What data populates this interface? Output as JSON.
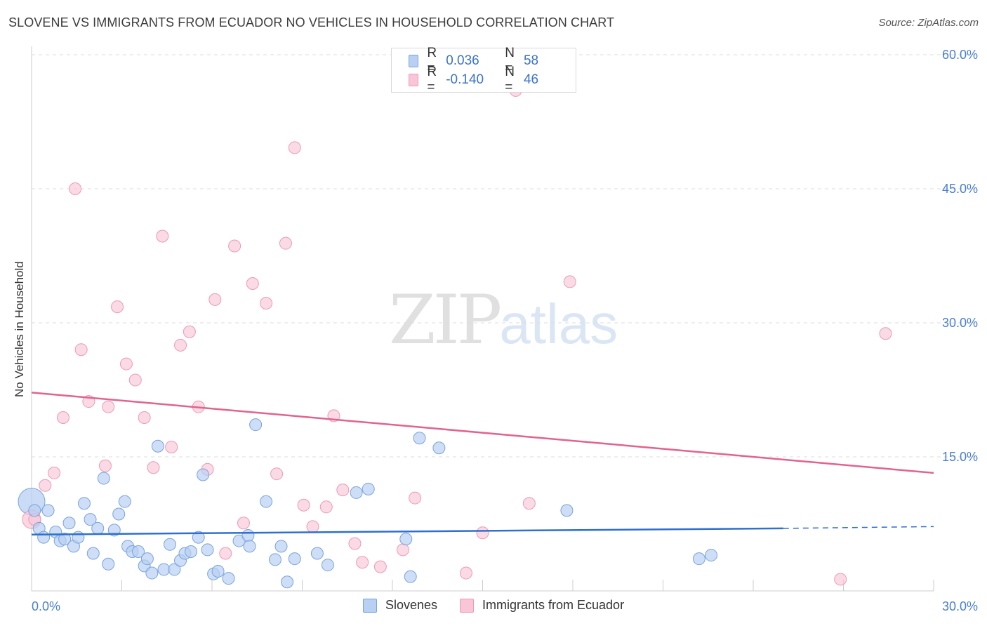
{
  "title": "SLOVENE VS IMMIGRANTS FROM ECUADOR NO VEHICLES IN HOUSEHOLD CORRELATION CHART",
  "source": "Source: ZipAtlas.com",
  "watermark": {
    "zip": "ZIP",
    "atlas": "atlas"
  },
  "legend": {
    "rows": [
      {
        "r_label": "R =",
        "r_value": "0.036",
        "n_label": "N =",
        "n_value": "58"
      },
      {
        "r_label": "R =",
        "r_value": "-0.140",
        "n_label": "N =",
        "n_value": "46"
      }
    ]
  },
  "bottom_legend": {
    "series1": "Slovenes",
    "series2": "Immigrants from Ecuador"
  },
  "colors": {
    "blue_fill": "#b8d0f2",
    "blue_stroke": "#7aa3de",
    "blue_line": "#2e6fcf",
    "pink_fill": "#f8c6d6",
    "pink_stroke": "#ee9ab5",
    "pink_line": "#e0648e",
    "tick_text": "#4a7fd0",
    "grid": "#dddddd"
  },
  "chart_data": {
    "type": "scatter",
    "title": "SLOVENE VS IMMIGRANTS FROM ECUADOR NO VEHICLES IN HOUSEHOLD CORRELATION CHART",
    "xlabel": "",
    "ylabel": "No Vehicles in Household",
    "xlim": [
      0,
      30
    ],
    "ylim": [
      0,
      60
    ],
    "x_tick_labels": [
      "0.0%",
      "30.0%"
    ],
    "y_ticks": [
      15,
      30,
      45,
      60
    ],
    "y_tick_labels": [
      "15.0%",
      "30.0%",
      "45.0%",
      "60.0%"
    ],
    "grid": true,
    "legend_position": "top-center",
    "series": [
      {
        "name": "Slovenes",
        "color": "#b8d0f2",
        "trend": {
          "x": [
            0,
            25
          ],
          "y": [
            6.3,
            7.0
          ],
          "dashed_to": [
            30,
            7.2
          ]
        },
        "points": [
          [
            0.1,
            9.0
          ],
          [
            0.25,
            7.0
          ],
          [
            0.4,
            6.0
          ],
          [
            0.55,
            9.0
          ],
          [
            0.8,
            6.6
          ],
          [
            0.95,
            5.6
          ],
          [
            1.1,
            5.8
          ],
          [
            1.25,
            7.6
          ],
          [
            1.4,
            5.0
          ],
          [
            1.55,
            6.0
          ],
          [
            1.75,
            9.8
          ],
          [
            1.95,
            8.0
          ],
          [
            2.05,
            4.2
          ],
          [
            2.2,
            7.0
          ],
          [
            2.4,
            12.6
          ],
          [
            2.55,
            3.0
          ],
          [
            2.75,
            6.8
          ],
          [
            2.9,
            8.6
          ],
          [
            3.1,
            10.0
          ],
          [
            3.2,
            5.0
          ],
          [
            3.35,
            4.4
          ],
          [
            3.55,
            4.4
          ],
          [
            3.75,
            2.8
          ],
          [
            3.85,
            3.6
          ],
          [
            4.0,
            2.0
          ],
          [
            4.2,
            16.2
          ],
          [
            4.4,
            2.4
          ],
          [
            4.6,
            5.2
          ],
          [
            4.75,
            2.4
          ],
          [
            4.95,
            3.4
          ],
          [
            5.1,
            4.2
          ],
          [
            5.3,
            4.4
          ],
          [
            5.55,
            6.0
          ],
          [
            5.7,
            13.0
          ],
          [
            5.85,
            4.6
          ],
          [
            6.05,
            1.9
          ],
          [
            6.2,
            2.2
          ],
          [
            6.55,
            1.4
          ],
          [
            6.9,
            5.6
          ],
          [
            7.2,
            6.2
          ],
          [
            7.25,
            5.0
          ],
          [
            7.45,
            18.6
          ],
          [
            7.8,
            10.0
          ],
          [
            8.1,
            3.5
          ],
          [
            8.3,
            5.0
          ],
          [
            8.5,
            1.0
          ],
          [
            8.75,
            3.6
          ],
          [
            9.5,
            4.2
          ],
          [
            9.85,
            2.9
          ],
          [
            10.8,
            11.0
          ],
          [
            11.2,
            11.4
          ],
          [
            12.45,
            5.8
          ],
          [
            12.6,
            1.6
          ],
          [
            12.9,
            17.1
          ],
          [
            13.55,
            16.0
          ],
          [
            17.8,
            9.0
          ],
          [
            22.2,
            3.6
          ],
          [
            22.6,
            4.0
          ]
        ]
      },
      {
        "name": "Immigrants from Ecuador",
        "color": "#f8c6d6",
        "trend": {
          "x": [
            0,
            30
          ],
          "y": [
            22.2,
            13.2
          ]
        },
        "points": [
          [
            0.1,
            8.0
          ],
          [
            0.45,
            11.8
          ],
          [
            0.75,
            13.2
          ],
          [
            1.05,
            19.4
          ],
          [
            1.45,
            45.0
          ],
          [
            1.65,
            27.0
          ],
          [
            1.9,
            21.2
          ],
          [
            2.45,
            14.0
          ],
          [
            2.55,
            20.6
          ],
          [
            2.85,
            31.8
          ],
          [
            3.15,
            25.4
          ],
          [
            3.45,
            23.6
          ],
          [
            3.75,
            19.4
          ],
          [
            4.05,
            13.8
          ],
          [
            4.35,
            39.7
          ],
          [
            4.65,
            16.1
          ],
          [
            4.95,
            27.5
          ],
          [
            5.25,
            29.0
          ],
          [
            5.55,
            20.6
          ],
          [
            5.85,
            13.6
          ],
          [
            6.1,
            32.6
          ],
          [
            6.45,
            4.2
          ],
          [
            6.75,
            38.6
          ],
          [
            7.05,
            7.6
          ],
          [
            7.35,
            34.4
          ],
          [
            7.8,
            32.2
          ],
          [
            8.15,
            13.1
          ],
          [
            8.45,
            38.9
          ],
          [
            8.75,
            49.6
          ],
          [
            9.05,
            9.6
          ],
          [
            9.35,
            7.2
          ],
          [
            9.8,
            9.4
          ],
          [
            10.05,
            19.6
          ],
          [
            10.35,
            11.3
          ],
          [
            10.75,
            5.3
          ],
          [
            11.0,
            3.2
          ],
          [
            11.6,
            2.7
          ],
          [
            12.35,
            4.6
          ],
          [
            12.75,
            10.4
          ],
          [
            14.45,
            2.0
          ],
          [
            15.0,
            6.5
          ],
          [
            16.1,
            56.0
          ],
          [
            16.55,
            9.8
          ],
          [
            17.9,
            34.6
          ],
          [
            26.9,
            1.3
          ],
          [
            28.4,
            28.8
          ]
        ]
      }
    ]
  }
}
